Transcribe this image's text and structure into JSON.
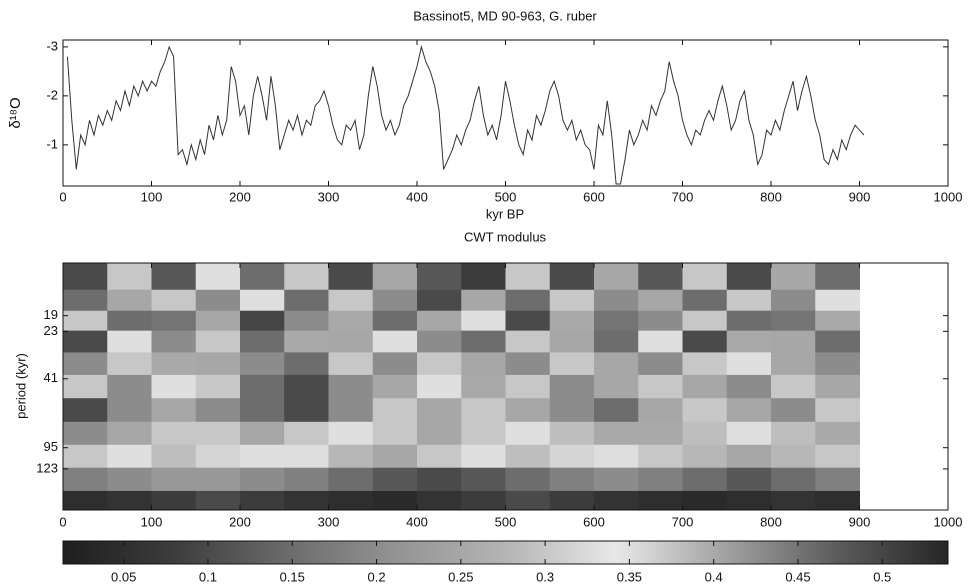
{
  "chart_data": [
    {
      "type": "line",
      "title": "Bassinot5, MD 90-963, G. ruber",
      "xlabel": "kyr BP",
      "ylabel": "δ¹⁸O",
      "color": "#333333",
      "xlim": [
        0,
        1000
      ],
      "xticks": [
        0,
        100,
        200,
        300,
        400,
        500,
        600,
        700,
        800,
        900,
        1000
      ],
      "ylim": [
        -0.16,
        -3.14
      ],
      "yticks": [
        -3,
        -2,
        -1
      ],
      "x": [
        5,
        10,
        15,
        20,
        25,
        30,
        35,
        40,
        45,
        50,
        55,
        60,
        65,
        70,
        75,
        80,
        85,
        90,
        95,
        100,
        105,
        110,
        115,
        120,
        125,
        130,
        135,
        140,
        145,
        150,
        155,
        160,
        165,
        170,
        175,
        180,
        185,
        190,
        195,
        200,
        205,
        210,
        215,
        220,
        225,
        230,
        235,
        240,
        245,
        250,
        255,
        260,
        265,
        270,
        275,
        280,
        285,
        290,
        295,
        300,
        305,
        310,
        315,
        320,
        325,
        330,
        335,
        340,
        345,
        350,
        355,
        360,
        365,
        370,
        375,
        380,
        385,
        390,
        395,
        400,
        405,
        410,
        415,
        420,
        425,
        430,
        435,
        440,
        445,
        450,
        455,
        460,
        465,
        470,
        475,
        480,
        485,
        490,
        495,
        500,
        505,
        510,
        515,
        520,
        525,
        530,
        535,
        540,
        545,
        550,
        555,
        560,
        565,
        570,
        575,
        580,
        585,
        590,
        595,
        600,
        605,
        610,
        615,
        620,
        625,
        630,
        635,
        640,
        645,
        650,
        655,
        660,
        665,
        670,
        675,
        680,
        685,
        690,
        695,
        700,
        705,
        710,
        715,
        720,
        725,
        730,
        735,
        740,
        745,
        750,
        755,
        760,
        765,
        770,
        775,
        780,
        785,
        790,
        795,
        800,
        805,
        810,
        815,
        820,
        825,
        830,
        835,
        840,
        845,
        850,
        855,
        860,
        865,
        870,
        875,
        880,
        885,
        890,
        895,
        900,
        905
      ],
      "values": [
        -2.8,
        -1.5,
        -0.5,
        -1.2,
        -1.0,
        -1.5,
        -1.2,
        -1.6,
        -1.4,
        -1.7,
        -1.5,
        -1.9,
        -1.7,
        -2.1,
        -1.8,
        -2.2,
        -2.0,
        -2.3,
        -2.1,
        -2.3,
        -2.2,
        -2.5,
        -2.7,
        -3.0,
        -2.8,
        -0.8,
        -0.9,
        -0.6,
        -1.0,
        -0.7,
        -1.1,
        -0.8,
        -1.4,
        -1.1,
        -1.6,
        -1.2,
        -1.5,
        -2.6,
        -2.3,
        -1.6,
        -1.8,
        -1.2,
        -2.0,
        -2.4,
        -2.0,
        -1.5,
        -2.4,
        -1.8,
        -0.9,
        -1.2,
        -1.5,
        -1.3,
        -1.6,
        -1.2,
        -1.5,
        -1.4,
        -1.8,
        -1.9,
        -2.1,
        -1.8,
        -1.4,
        -1.1,
        -1.0,
        -1.4,
        -1.3,
        -1.5,
        -0.9,
        -1.2,
        -2.0,
        -2.6,
        -2.2,
        -1.6,
        -1.3,
        -1.5,
        -1.2,
        -1.4,
        -1.8,
        -2.0,
        -2.3,
        -2.6,
        -3.0,
        -2.7,
        -2.5,
        -2.2,
        -1.7,
        -0.5,
        -0.7,
        -0.9,
        -1.2,
        -1.0,
        -1.3,
        -1.5,
        -1.9,
        -2.2,
        -1.6,
        -1.2,
        -1.4,
        -1.1,
        -1.6,
        -2.3,
        -1.9,
        -1.4,
        -1.0,
        -0.8,
        -1.3,
        -1.1,
        -1.6,
        -1.4,
        -1.7,
        -2.1,
        -2.3,
        -2.0,
        -1.5,
        -1.3,
        -1.5,
        -1.1,
        -1.3,
        -1.0,
        -0.9,
        -0.5,
        -1.4,
        -1.2,
        -1.9,
        -1.2,
        -0.2,
        -0.2,
        -0.7,
        -1.3,
        -1.0,
        -1.2,
        -1.5,
        -1.3,
        -1.8,
        -1.6,
        -1.9,
        -2.1,
        -2.7,
        -2.3,
        -2.0,
        -1.5,
        -1.2,
        -1.0,
        -1.3,
        -1.2,
        -1.5,
        -1.7,
        -1.5,
        -1.9,
        -2.2,
        -1.8,
        -1.3,
        -1.5,
        -1.9,
        -2.1,
        -1.5,
        -1.2,
        -0.6,
        -0.8,
        -1.3,
        -1.2,
        -1.5,
        -1.3,
        -1.7,
        -2.0,
        -2.3,
        -1.7,
        -2.1,
        -2.4,
        -2.0,
        -1.5,
        -1.2,
        -0.7,
        -0.6,
        -0.9,
        -0.7,
        -1.1,
        -0.9,
        -1.2,
        -1.4,
        -1.3,
        -1.2
      ]
    },
    {
      "type": "heatmap",
      "title": "CWT modulus",
      "ylabel": "period (kyr)",
      "xlim": [
        0,
        1000
      ],
      "xticks": [
        0,
        100,
        200,
        300,
        400,
        500,
        600,
        700,
        800,
        900,
        1000
      ],
      "ylim": [
        203,
        10
      ],
      "log_y": true,
      "yticks": [
        19,
        23,
        41,
        95,
        123
      ],
      "x": [
        25,
        75,
        125,
        175,
        225,
        275,
        325,
        375,
        425,
        475,
        525,
        575,
        625,
        675,
        725,
        775,
        825,
        875
      ],
      "y": [
        12,
        16,
        20,
        26,
        34,
        45,
        60,
        80,
        105,
        140,
        185
      ],
      "values": [
        [
          0.1,
          0.3,
          0.12,
          0.35,
          0.15,
          0.3,
          0.1,
          0.25,
          0.12,
          0.08,
          0.3,
          0.1,
          0.25,
          0.12,
          0.3,
          0.1,
          0.25,
          0.15
        ],
        [
          0.15,
          0.25,
          0.3,
          0.2,
          0.35,
          0.15,
          0.3,
          0.2,
          0.1,
          0.25,
          0.15,
          0.3,
          0.2,
          0.25,
          0.15,
          0.3,
          0.2,
          0.35
        ],
        [
          0.3,
          0.15,
          0.45,
          0.25,
          0.5,
          0.2,
          0.4,
          0.15,
          0.25,
          0.35,
          0.1,
          0.4,
          0.45,
          0.2,
          0.3,
          0.15,
          0.45,
          0.4
        ],
        [
          0.1,
          0.35,
          0.2,
          0.3,
          0.15,
          0.4,
          0.25,
          0.35,
          0.2,
          0.15,
          0.3,
          0.25,
          0.15,
          0.35,
          0.1,
          0.4,
          0.25,
          0.15
        ],
        [
          0.2,
          0.3,
          0.4,
          0.25,
          0.2,
          0.15,
          0.3,
          0.2,
          0.3,
          0.25,
          0.2,
          0.3,
          0.25,
          0.2,
          0.3,
          0.35,
          0.25,
          0.2
        ],
        [
          0.3,
          0.2,
          0.35,
          0.3,
          0.15,
          0.1,
          0.2,
          0.25,
          0.35,
          0.4,
          0.3,
          0.2,
          0.25,
          0.3,
          0.25,
          0.2,
          0.3,
          0.25
        ],
        [
          0.1,
          0.2,
          0.25,
          0.2,
          0.15,
          0.1,
          0.2,
          0.3,
          0.25,
          0.3,
          0.25,
          0.2,
          0.15,
          0.25,
          0.3,
          0.25,
          0.2,
          0.3
        ],
        [
          0.2,
          0.25,
          0.3,
          0.3,
          0.25,
          0.3,
          0.35,
          0.3,
          0.25,
          0.3,
          0.35,
          0.38,
          0.4,
          0.4,
          0.38,
          0.35,
          0.38,
          0.4
        ],
        [
          0.3,
          0.35,
          0.38,
          0.36,
          0.35,
          0.33,
          0.28,
          0.25,
          0.3,
          0.35,
          0.38,
          0.36,
          0.33,
          0.3,
          0.28,
          0.25,
          0.28,
          0.3
        ],
        [
          0.18,
          0.2,
          0.22,
          0.22,
          0.2,
          0.18,
          0.15,
          0.12,
          0.1,
          0.12,
          0.15,
          0.18,
          0.2,
          0.18,
          0.15,
          0.12,
          0.15,
          0.18
        ],
        [
          0.05,
          0.06,
          0.08,
          0.1,
          0.08,
          0.06,
          0.05,
          0.04,
          0.06,
          0.08,
          0.1,
          0.08,
          0.06,
          0.05,
          0.04,
          0.05,
          0.06,
          0.05
        ]
      ],
      "clim": [
        0.014,
        0.539
      ],
      "colormap": [
        "#1e1e1e",
        "#3c3c3c",
        "#6a6a6a",
        "#939393",
        "#b4b4b4",
        "#e8e8e8",
        "#a0a0a0",
        "#5c5c5c",
        "#262626"
      ],
      "colorbar_ticks": [
        0.05,
        0.1,
        0.15,
        0.2,
        0.25,
        0.3,
        0.35,
        0.4,
        0.45,
        0.5
      ]
    }
  ]
}
